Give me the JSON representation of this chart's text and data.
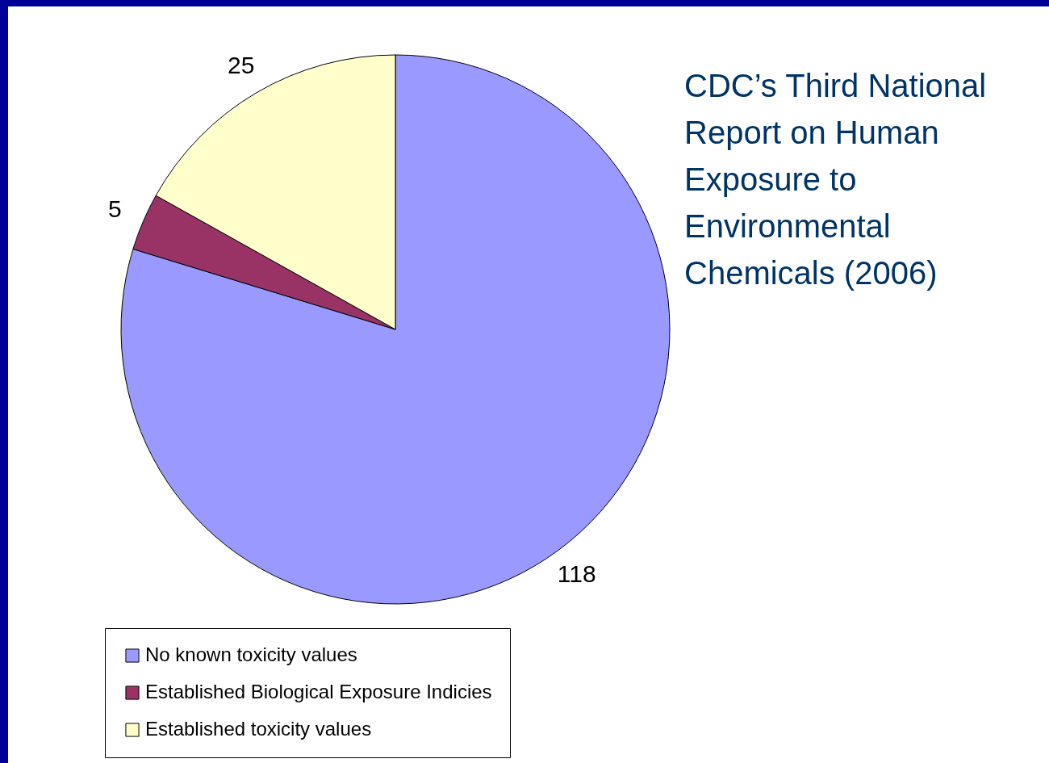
{
  "chart_data": {
    "type": "pie",
    "title": "CDC’s Third National Report on Human Exposure to Environmental Chemicals (2006)",
    "categories": [
      "No known toxicity values",
      "Established Biological Exposure Indicies",
      "Established toxicity values"
    ],
    "values": [
      118,
      5,
      25
    ],
    "colors": [
      "#9999ff",
      "#993366",
      "#ffffcc"
    ],
    "data_labels": true,
    "legend": "bottom left"
  }
}
